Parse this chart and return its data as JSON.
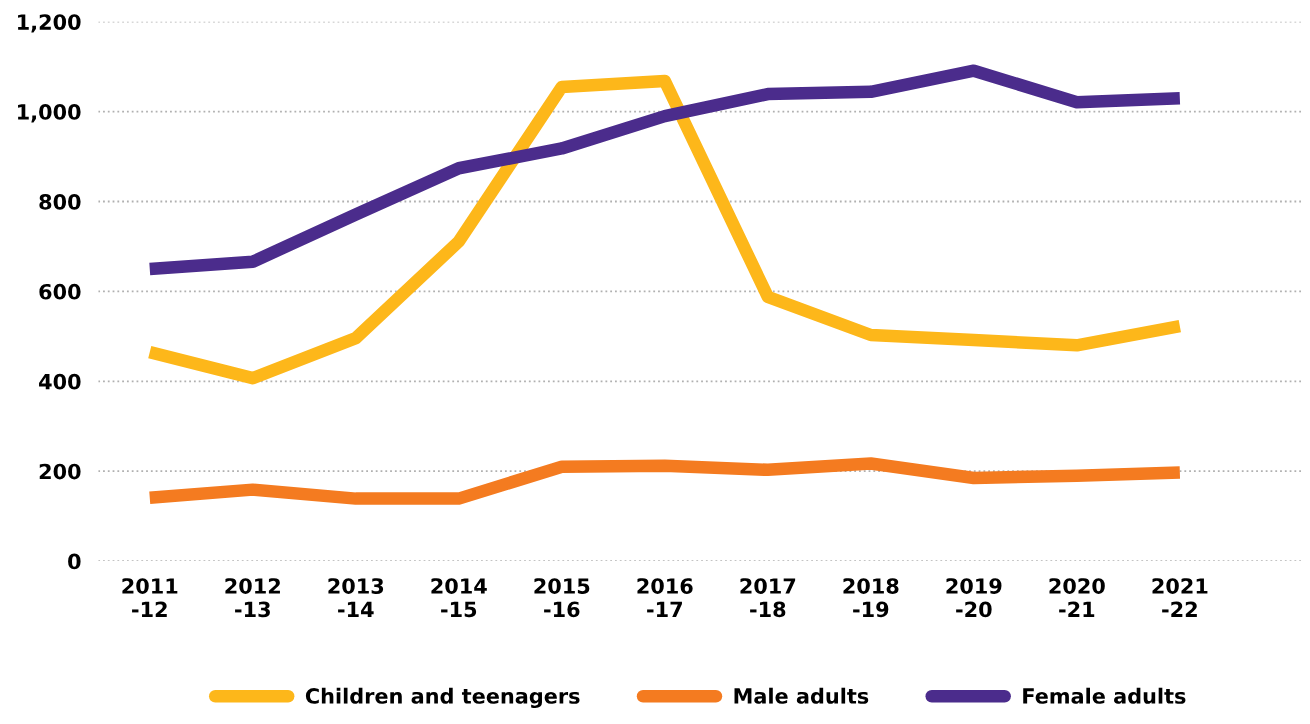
{
  "chart_data": {
    "type": "line",
    "categories": [
      "2011\n-12",
      "2012\n-13",
      "2013\n-14",
      "2014\n-15",
      "2015\n-16",
      "2016\n-17",
      "2017\n-18",
      "2018\n-19",
      "2019\n-20",
      "2020\n-21",
      "2021\n-22"
    ],
    "series": [
      {
        "name": "Children and teenagers",
        "color": "#fdb71a",
        "values": [
          465,
          407,
          496,
          711,
          1055,
          1068,
          588,
          503,
          492,
          480,
          523
        ]
      },
      {
        "name": "Male adults",
        "color": "#f47b20",
        "values": [
          141,
          159,
          139,
          139,
          210,
          212,
          203,
          217,
          185,
          190,
          197
        ]
      },
      {
        "name": "Female adults",
        "color": "#4b2c8c",
        "values": [
          650,
          666,
          771,
          874,
          918,
          990,
          1039,
          1044,
          1091,
          1021,
          1030
        ]
      }
    ],
    "ylim": [
      0,
      1200
    ],
    "yticks": [
      0,
      200,
      400,
      600,
      800,
      {
        "value": 1000,
        "label": "1,000"
      },
      {
        "value": 1200,
        "label": "1,200"
      }
    ],
    "grid": "y",
    "legend": "bottom",
    "marker": "none",
    "line_style": "solid"
  }
}
